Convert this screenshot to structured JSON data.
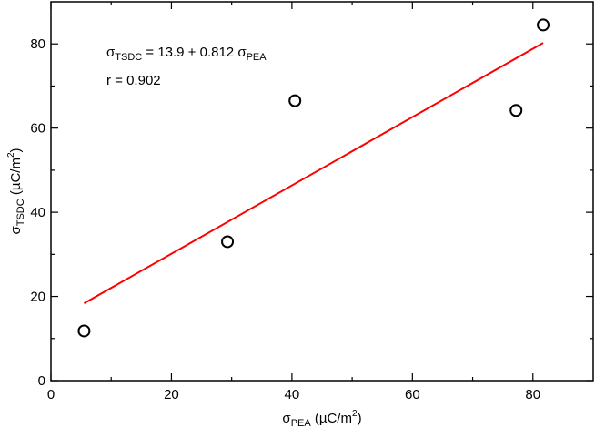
{
  "chart_data": {
    "type": "scatter",
    "xlabel": {
      "base": "σ",
      "sub": "PEA",
      "unit_pre": " (µC/m",
      "unit_sup": "2",
      "unit_post": ")"
    },
    "ylabel": {
      "base": "σ",
      "sub": "TSDC",
      "unit_pre": " (µC/m",
      "unit_sup": "2",
      "unit_post": ")"
    },
    "xlim": [
      0,
      90
    ],
    "ylim": [
      0,
      90
    ],
    "xticks": [
      0,
      20,
      40,
      60,
      80
    ],
    "yticks": [
      0,
      20,
      40,
      60,
      80
    ],
    "xtick_labels": [
      "0",
      "20",
      "40",
      "60",
      "80"
    ],
    "ytick_labels": [
      "0",
      "20",
      "40",
      "60",
      "80"
    ],
    "grid": false,
    "series": [
      {
        "marker": "open-circle",
        "color": "#000000",
        "points": [
          {
            "x": 5.5,
            "y": 11.8
          },
          {
            "x": 29.3,
            "y": 33.0
          },
          {
            "x": 40.5,
            "y": 66.5
          },
          {
            "x": 77.2,
            "y": 64.2
          },
          {
            "x": 81.7,
            "y": 84.5
          }
        ]
      }
    ],
    "fit_line": {
      "color": "#ff0000",
      "x_range": [
        5.5,
        81.7
      ],
      "intercept": 13.9,
      "slope": 0.812
    },
    "annotations": {
      "equation": {
        "lhs": "σ",
        "lhs_sub": "TSDC",
        "mid": " = 13.9 + 0.812 ",
        "rhs": "σ",
        "rhs_sub": "PEA"
      },
      "r_text": "r = 0.902"
    }
  }
}
